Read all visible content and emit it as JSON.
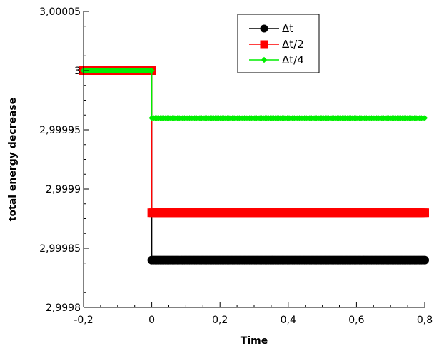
{
  "chart_data": {
    "type": "line",
    "xlabel": "Time",
    "ylabel": "total energy decrease",
    "xlim": [
      -0.2,
      0.8
    ],
    "ylim": [
      2.9998,
      3.00005
    ],
    "xticks": [
      -0.2,
      0,
      0.2,
      0.4,
      0.6,
      0.8
    ],
    "xtick_labels": [
      "-0,2",
      "0",
      "0,2",
      "0,4",
      "0,6",
      "0,8"
    ],
    "yticks": [
      2.9998,
      2.99985,
      2.9999,
      2.99995,
      3,
      3.00005
    ],
    "ytick_labels": [
      "2,9998",
      "2,99985",
      "2,9999",
      "2,99995",
      "3",
      "3,00005"
    ],
    "grid": false,
    "legend_position": "top-right",
    "series": [
      {
        "name": "Δt",
        "color": "#000000",
        "marker": "circle",
        "points": [
          [
            -0.2,
            3.0
          ],
          [
            0.0,
            3.0
          ],
          [
            0.0,
            2.99984
          ],
          [
            0.8,
            2.99984
          ]
        ]
      },
      {
        "name": "Δt/2",
        "color": "#ff0000",
        "marker": "square",
        "points": [
          [
            -0.2,
            3.0
          ],
          [
            0.0,
            3.0
          ],
          [
            0.0,
            2.99988
          ],
          [
            0.8,
            2.99988
          ]
        ]
      },
      {
        "name": "Δt/4",
        "color": "#00ee00",
        "marker": "diamond",
        "points": [
          [
            -0.2,
            3.0
          ],
          [
            0.0,
            3.0
          ],
          [
            0.0,
            2.99996
          ],
          [
            0.8,
            2.99996
          ]
        ]
      }
    ]
  }
}
